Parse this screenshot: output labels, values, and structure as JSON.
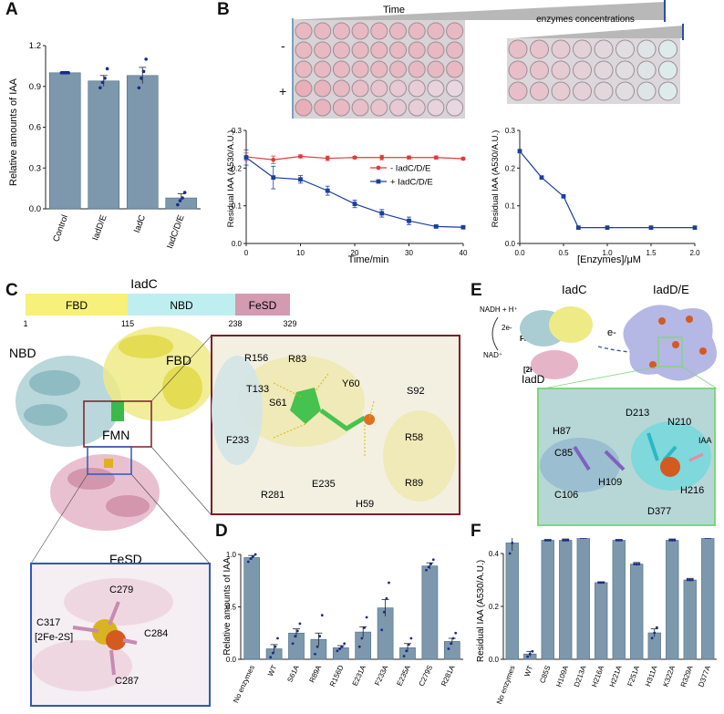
{
  "panels": {
    "A": "A",
    "B": "B",
    "C": "C",
    "D": "D",
    "E": "E",
    "F": "F"
  },
  "colors": {
    "bar": "#7d98ad",
    "bar_stroke": "#4d6a80",
    "dot": "#1a2d8a",
    "red_series": "#e03a3a",
    "blue_series": "#1a3fa0",
    "fbd": "#f7f07a",
    "nbd": "#bfeef0",
    "fesd": "#d39ab0",
    "frame_c": "#7a1f2b",
    "frame_c2": "#2f58b8",
    "frame_e": "#7fd67f"
  },
  "panelB": {
    "time_label": "Time",
    "conc_label": "enzymes concentrations",
    "plate_minus": "-",
    "plate_plus": "+"
  },
  "panelC": {
    "domain_title": "IadC",
    "domains": [
      "FBD",
      "NBD",
      "FeSD"
    ],
    "boundaries": [
      "1",
      "115",
      "238",
      "329"
    ],
    "labels_overview": [
      "NBD",
      "FBD",
      "FMN",
      "FeSD"
    ],
    "residues_fmn": [
      "R156",
      "R83",
      "T133",
      "Y60",
      "S61",
      "S92",
      "F233",
      "R58",
      "R89",
      "R281",
      "E235",
      "H59"
    ],
    "residues_fes": [
      "C279",
      "C317",
      "[2Fe-2S]",
      "C284",
      "C287"
    ]
  },
  "panelE": {
    "title_left": "IadC",
    "title_right": "IadD/E",
    "nadh": "NADH + H⁺",
    "two_e": "2e-",
    "fmn": "FMN",
    "nad": "NAD⁺",
    "fes": "[2Fe-2S]",
    "e_minus": "e-",
    "iadd": "IadD",
    "residues": [
      "D213",
      "N210",
      "H87",
      "C85",
      "IAA",
      "H109",
      "H216",
      "C106",
      "D377"
    ]
  },
  "chart_data": [
    {
      "id": "A",
      "type": "bar",
      "ylabel": "Relative amounts of IAA",
      "xlabel": "",
      "categories": [
        "Control",
        "IadD/E",
        "IadC",
        "IadC/D/E"
      ],
      "values": [
        1.0,
        0.94,
        0.98,
        0.08
      ],
      "errors": [
        0.01,
        0.04,
        0.06,
        0.03
      ],
      "points": [
        [
          1.0,
          1.0,
          1.0,
          1.0
        ],
        [
          0.89,
          0.93,
          0.96,
          1.03
        ],
        [
          0.89,
          0.96,
          1.01,
          1.1
        ],
        [
          0.03,
          0.06,
          0.08,
          0.12
        ]
      ],
      "ylim": [
        0,
        1.2
      ],
      "yticks": [
        "0.0",
        "0.3",
        "0.6",
        "0.9",
        "1.2"
      ]
    },
    {
      "id": "B1",
      "type": "line",
      "ylabel": "Residual IAA (A530/A.U.)",
      "xlabel": "Time/min",
      "x": [
        0,
        5,
        10,
        15,
        20,
        25,
        30,
        35,
        40
      ],
      "series": [
        {
          "name": "- IadC/D/E",
          "values": [
            0.23,
            0.222,
            0.231,
            0.226,
            0.228,
            0.228,
            0.228,
            0.228,
            0.225
          ],
          "err": [
            0.01,
            0.01,
            0.004,
            0.006,
            0.003,
            0.006,
            0.004,
            0.004,
            0.003
          ]
        },
        {
          "name": "+ IadC/D/E",
          "values": [
            0.228,
            0.175,
            0.17,
            0.14,
            0.105,
            0.08,
            0.06,
            0.045,
            0.043
          ],
          "err": [
            0.02,
            0.03,
            0.01,
            0.012,
            0.01,
            0.01,
            0.01,
            0.003,
            0.003
          ]
        }
      ],
      "xlim": [
        0,
        40
      ],
      "ylim": [
        0,
        0.3
      ],
      "xticks": [
        "0",
        "10",
        "20",
        "30",
        "40"
      ],
      "yticks": [
        "0.0",
        "0.1",
        "0.2",
        "0.3"
      ],
      "legend": "center-right"
    },
    {
      "id": "B2",
      "type": "line",
      "ylabel": "Residual IAA (A530/A.U.)",
      "xlabel": "[Enzymes]/μM",
      "x": [
        0.0,
        0.25,
        0.5,
        0.67,
        1.0,
        1.5,
        2.0
      ],
      "series": [
        {
          "name": "",
          "values": [
            0.245,
            0.175,
            0.125,
            0.042,
            0.042,
            0.042,
            0.042
          ]
        }
      ],
      "xlim": [
        0,
        2.0
      ],
      "ylim": [
        0,
        0.3
      ],
      "xticks": [
        "0.0",
        "0.5",
        "1.0",
        "1.5",
        "2.0"
      ],
      "yticks": [
        "0.0",
        "0.1",
        "0.2",
        "0.3"
      ]
    },
    {
      "id": "D",
      "type": "bar",
      "ylabel": "Relative amounts of IAA",
      "xlabel": "",
      "categories": [
        "No enzymes",
        "WT",
        "S61A",
        "R89A",
        "R156D",
        "E231A",
        "F233A",
        "E235A",
        "C279S",
        "R281A"
      ],
      "values": [
        0.97,
        0.1,
        0.25,
        0.19,
        0.11,
        0.26,
        0.49,
        0.11,
        0.89,
        0.17
      ],
      "errors": [
        0.02,
        0.04,
        0.04,
        0.06,
        0.02,
        0.05,
        0.08,
        0.04,
        0.03,
        0.03
      ],
      "points": [
        [
          0.93,
          0.96,
          0.98,
          1.0
        ],
        [
          0.02,
          0.06,
          0.12,
          0.2
        ],
        [
          0.15,
          0.22,
          0.27,
          0.34
        ],
        [
          0.05,
          0.12,
          0.22,
          0.42
        ],
        [
          0.08,
          0.1,
          0.12,
          0.15
        ],
        [
          0.12,
          0.2,
          0.3,
          0.4
        ],
        [
          0.28,
          0.45,
          0.58,
          0.73
        ],
        [
          0.03,
          0.08,
          0.14,
          0.2
        ],
        [
          0.85,
          0.88,
          0.91,
          0.95
        ],
        [
          0.1,
          0.15,
          0.2,
          0.25
        ]
      ],
      "ylim": [
        0,
        1.0
      ],
      "yticks": [
        "0.0",
        "0.5",
        "1.0"
      ]
    },
    {
      "id": "F",
      "type": "bar",
      "ylabel": "Residual IAA (A530/A.U.)",
      "xlabel": "",
      "categories": [
        "No enzymes",
        "WT",
        "C85S",
        "H109A",
        "D213A",
        "H216A",
        "H221A",
        "F251A",
        "H311A",
        "K322A",
        "R329A",
        "D377A"
      ],
      "values": [
        0.44,
        0.02,
        0.45,
        0.45,
        0.46,
        0.29,
        0.45,
        0.36,
        0.1,
        0.45,
        0.3,
        0.46
      ],
      "errors": [
        0.03,
        0.01,
        0.003,
        0.005,
        0.005,
        0.003,
        0.003,
        0.006,
        0.015,
        0.005,
        0.006,
        0.005
      ],
      "points": [
        [
          0.4,
          0.44,
          0.48
        ],
        [
          0.01,
          0.02,
          0.03
        ],
        [
          0.45,
          0.45,
          0.45
        ],
        [
          0.45,
          0.45,
          0.45
        ],
        [
          0.46,
          0.46,
          0.46
        ],
        [
          0.29,
          0.29,
          0.29
        ],
        [
          0.45,
          0.45,
          0.45
        ],
        [
          0.36,
          0.36,
          0.36
        ],
        [
          0.08,
          0.1,
          0.12
        ],
        [
          0.45,
          0.45,
          0.45
        ],
        [
          0.3,
          0.3,
          0.3
        ],
        [
          0.46,
          0.46,
          0.46
        ]
      ],
      "ylim": [
        0,
        0.4
      ],
      "yticks": [
        "0.0",
        "0.2",
        "0.4"
      ]
    }
  ]
}
